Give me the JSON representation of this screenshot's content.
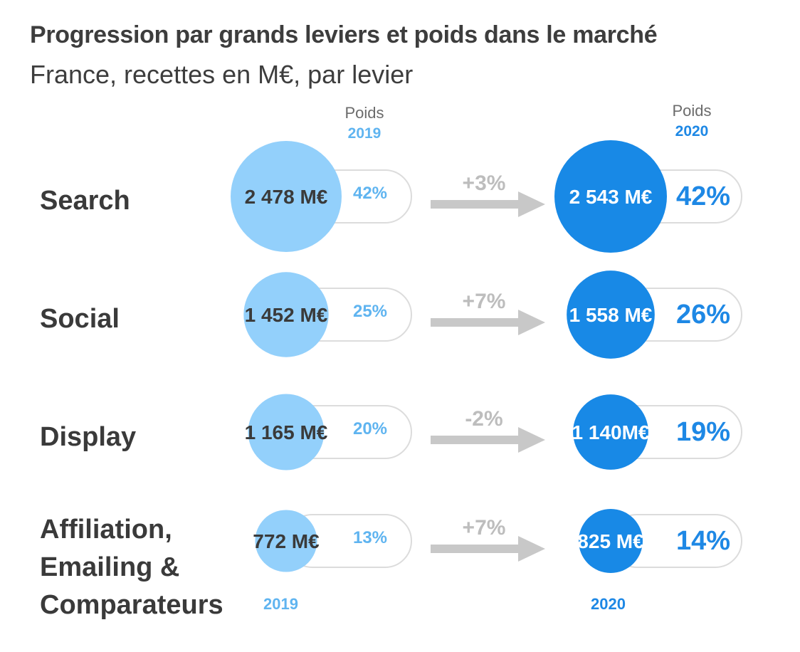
{
  "title": "Progression par grands leviers et poids dans le marché",
  "subtitle": "France, recettes en M€, par levier",
  "headers": {
    "weight_label": "Poids",
    "year_2019": "2019",
    "year_2020": "2020"
  },
  "footer": {
    "year_2019": "2019",
    "year_2020": "2020"
  },
  "colors": {
    "circle_2019": "#93d0fb",
    "circle_2020": "#1889e6",
    "pct_2019": "#5fb4f0",
    "pct_2020": "#1e88e5",
    "arrow": "#c8c8c8",
    "pill_border": "#dcdcdc"
  },
  "chart_data": {
    "type": "bubble-comparison",
    "categories": [
      "Search",
      "Social",
      "Display",
      "Affiliation, Emailing & Comparateurs"
    ],
    "label_lines": [
      [
        "Search"
      ],
      [
        "Social"
      ],
      [
        "Display"
      ],
      [
        "Affiliation,",
        "Emailing &",
        "Comparateurs"
      ]
    ],
    "series": [
      {
        "name": "2019",
        "values": [
          2478,
          1452,
          1165,
          772
        ],
        "value_labels": [
          "2 478 M€",
          "1 452 M€",
          "1 165 M€",
          "772 M€"
        ],
        "weights": [
          "42%",
          "25%",
          "20%",
          "13%"
        ]
      },
      {
        "name": "2020",
        "values": [
          2543,
          1558,
          1140,
          825
        ],
        "value_labels": [
          "2 543 M€",
          "1 558 M€",
          "1 140M€",
          "825 M€"
        ],
        "weights": [
          "42%",
          "26%",
          "19%",
          "14%"
        ]
      }
    ],
    "growth": [
      "+3%",
      "+7%",
      "-2%",
      "+7%"
    ]
  }
}
